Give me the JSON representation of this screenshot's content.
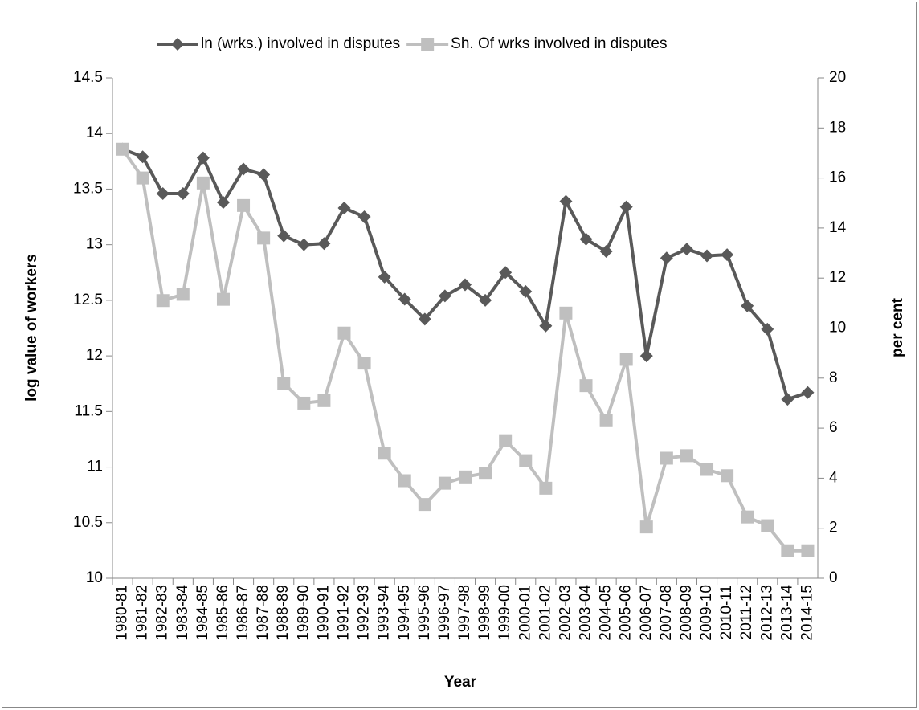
{
  "chart_data": {
    "type": "line",
    "categories": [
      "1980-81",
      "1981-82",
      "1982-83",
      "1983-84",
      "1984-85",
      "1985-86",
      "1986-87",
      "1987-88",
      "1988-89",
      "1989-90",
      "1990-91",
      "1991-92",
      "1992-93",
      "1993-94",
      "1994-95",
      "1995-96",
      "1996-97",
      "1997-98",
      "1998-99",
      "1999-00",
      "2000-01",
      "2001-02",
      "2002-03",
      "2003-04",
      "2004-05",
      "2005-06",
      "2006-07",
      "2007-08",
      "2008-09",
      "2009-10",
      "2010-11",
      "2011-12",
      "2012-13",
      "2013-14",
      "2014-15"
    ],
    "series": [
      {
        "name": "ln (wrks.) involved in disputes",
        "color": "#595959",
        "marker": "diamond",
        "values": [
          13.86,
          13.79,
          13.46,
          13.46,
          13.78,
          13.38,
          13.68,
          13.63,
          13.08,
          13.0,
          13.01,
          13.33,
          13.25,
          12.71,
          12.51,
          12.33,
          12.54,
          12.64,
          12.5,
          12.75,
          12.58,
          12.27,
          13.39,
          13.05,
          12.94,
          13.34,
          12.0,
          12.88,
          12.96,
          12.9,
          12.91,
          12.45,
          12.24,
          11.61,
          11.67
        ]
      },
      {
        "name": "Sh. Of wrks involved in disputes",
        "color": "#bfbfbf",
        "marker": "square",
        "axis": "y2",
        "values": [
          17.15,
          16.0,
          11.1,
          11.35,
          15.8,
          11.15,
          14.9,
          13.6,
          7.8,
          7.0,
          7.1,
          9.8,
          8.6,
          5.0,
          3.9,
          2.95,
          3.8,
          4.05,
          4.2,
          5.5,
          4.7,
          3.6,
          10.6,
          7.7,
          6.3,
          8.75,
          2.05,
          4.8,
          4.9,
          4.35,
          4.1,
          2.45,
          2.1,
          1.1,
          1.1
        ]
      }
    ],
    "xlabel": "Year",
    "ylabel": "log value of workers",
    "y2label": "per cent",
    "ylim": [
      10,
      14.5
    ],
    "yticks": [
      10,
      10.5,
      11,
      11.5,
      12,
      12.5,
      13,
      13.5,
      14,
      14.5
    ],
    "y2lim": [
      0,
      20
    ],
    "y2ticks": [
      0,
      2,
      4,
      6,
      8,
      10,
      12,
      14,
      16,
      18,
      20
    ],
    "legend": "top",
    "grid": false
  }
}
